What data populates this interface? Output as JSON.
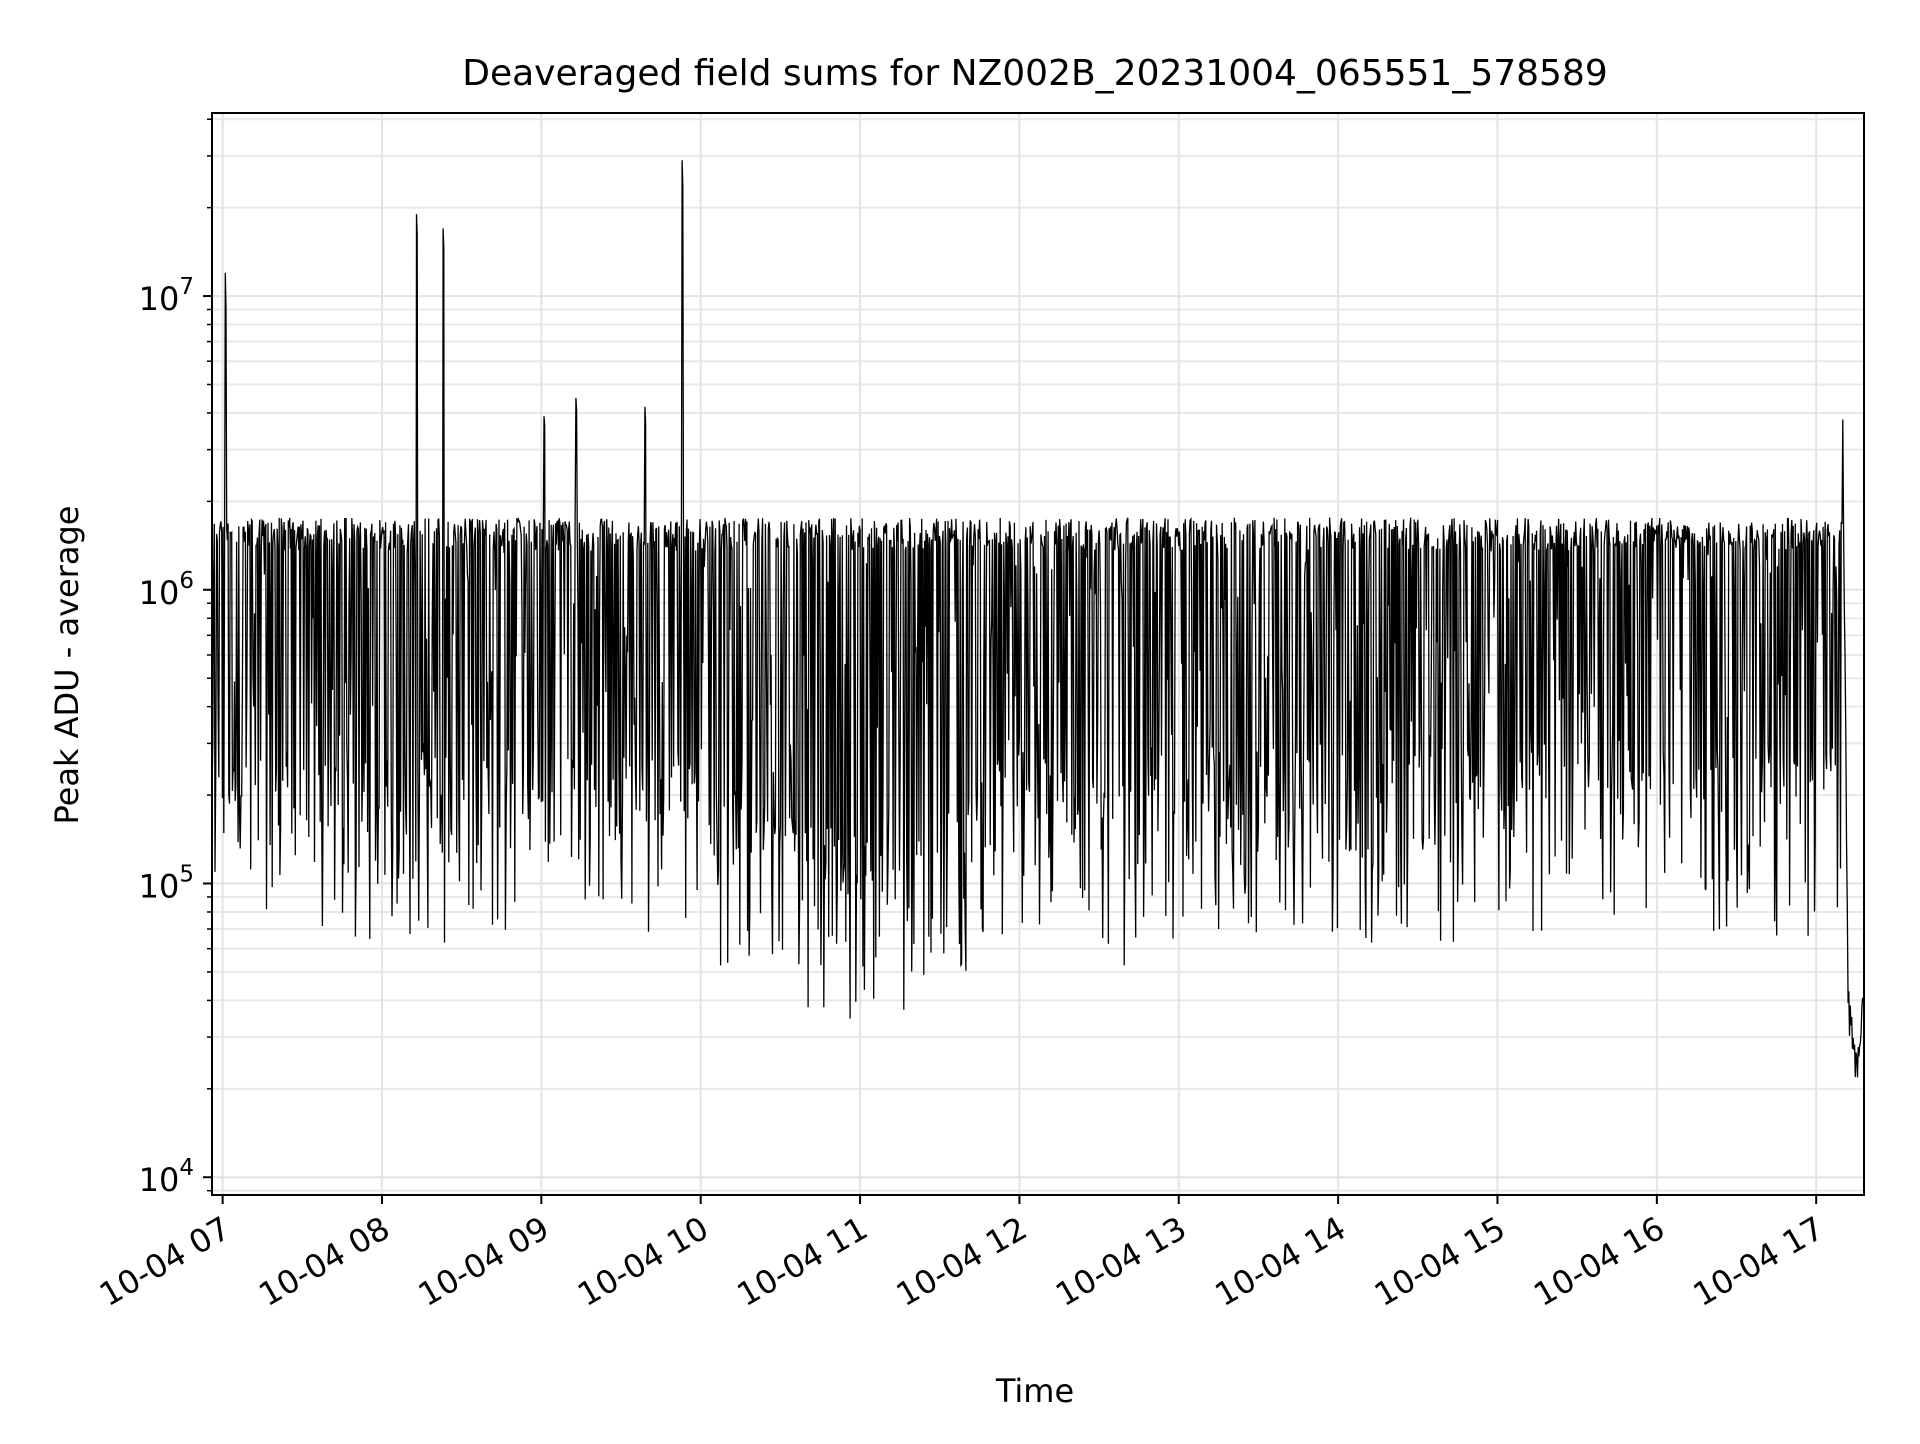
{
  "chart_data": {
    "type": "line",
    "title": "Deaveraged field sums for NZ002B_20231004_065551_578589",
    "xlabel": "Time",
    "ylabel": "Peak ADU - average",
    "yscale": "log",
    "xlim": [
      "2023-10-04 06:56",
      "2023-10-04 17:18"
    ],
    "ylim": [
      8700,
      42000000
    ],
    "grid": true,
    "line_color": "#000000",
    "x_tick_labels": [
      "10-04 07",
      "10-04 08",
      "10-04 09",
      "10-04 10",
      "10-04 11",
      "10-04 12",
      "10-04 13",
      "10-04 14",
      "10-04 15",
      "10-04 16",
      "10-04 17"
    ],
    "x_tick_values": [
      "2023-10-04 07:00",
      "2023-10-04 08:00",
      "2023-10-04 09:00",
      "2023-10-04 10:00",
      "2023-10-04 11:00",
      "2023-10-04 12:00",
      "2023-10-04 13:00",
      "2023-10-04 14:00",
      "2023-10-04 15:00",
      "2023-10-04 16:00",
      "2023-10-04 17:00"
    ],
    "y_tick_values": [
      10000,
      100000,
      1000000,
      10000000
    ],
    "y_tick_labels": [
      {
        "base": "10",
        "exp": "4"
      },
      {
        "base": "10",
        "exp": "5"
      },
      {
        "base": "10",
        "exp": "6"
      },
      {
        "base": "10",
        "exp": "7"
      }
    ],
    "series": [
      {
        "x": [
          "2023-10-04 06:56",
          "2023-10-04 06:58",
          "2023-10-04 07:01",
          "2023-10-04 07:05",
          "2023-10-04 07:08",
          "2023-10-04 07:10",
          "2023-10-04 07:12",
          "2023-10-04 07:14",
          "2023-10-04 07:16",
          "2023-10-04 07:20",
          "2023-10-04 07:25",
          "2023-10-04 07:30",
          "2023-10-04 07:40",
          "2023-10-04 07:50",
          "2023-10-04 08:00",
          "2023-10-04 08:10",
          "2023-10-04 08:13",
          "2023-10-04 08:20",
          "2023-10-04 08:23",
          "2023-10-04 08:30",
          "2023-10-04 08:40",
          "2023-10-04 08:50",
          "2023-10-04 09:00",
          "2023-10-04 09:01",
          "2023-10-04 09:10",
          "2023-10-04 09:13",
          "2023-10-04 09:20",
          "2023-10-04 09:30",
          "2023-10-04 09:39",
          "2023-10-04 09:45",
          "2023-10-04 09:53",
          "2023-10-04 10:00",
          "2023-10-04 10:15",
          "2023-10-04 10:30",
          "2023-10-04 10:45",
          "2023-10-04 11:00",
          "2023-10-04 11:20",
          "2023-10-04 11:35",
          "2023-10-04 11:45",
          "2023-10-04 12:00",
          "2023-10-04 12:20",
          "2023-10-04 12:40",
          "2023-10-04 13:00",
          "2023-10-04 13:30",
          "2023-10-04 14:00",
          "2023-10-04 14:30",
          "2023-10-04 15:00",
          "2023-10-04 15:30",
          "2023-10-04 16:00",
          "2023-10-04 16:30",
          "2023-10-04 16:50",
          "2023-10-04 17:05",
          "2023-10-04 17:08",
          "2023-10-04 17:10",
          "2023-10-04 17:12",
          "2023-10-04 17:15",
          "2023-10-04 17:18"
        ],
        "y": [
          600000,
          700000,
          12000000,
          200000,
          250000,
          300000,
          400000,
          350000,
          300000,
          1200000,
          400000,
          300000,
          250000,
          200000,
          300000,
          180000,
          19000000,
          300000,
          17000000,
          300000,
          400000,
          350000,
          300000,
          3900000,
          350000,
          4500000,
          300000,
          250000,
          4200000,
          300000,
          29000000,
          200000,
          180000,
          150000,
          140000,
          130000,
          120000,
          150000,
          200000,
          250000,
          220000,
          200000,
          250000,
          260000,
          240000,
          250000,
          260000,
          250000,
          260000,
          270000,
          300000,
          700000,
          1400000,
          3800000,
          40000,
          25000,
          40000
        ]
      }
    ]
  }
}
